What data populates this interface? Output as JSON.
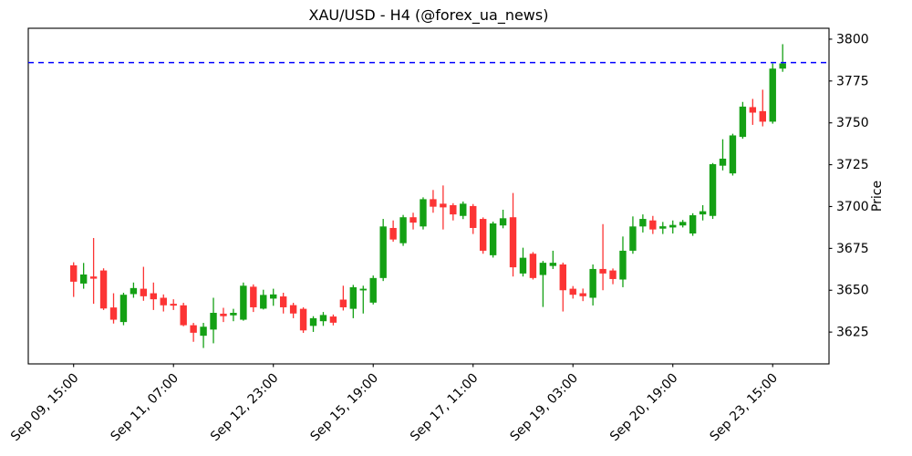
{
  "title": "XAU/USD - H4 (@forex_ua_news)",
  "chart_data": {
    "type": "candlestick",
    "title": "XAU/USD - H4 (@forex_ua_news)",
    "ylabel": "Price",
    "ylim": [
      3606,
      3806.5
    ],
    "xlim": [
      -4.54,
      75.64
    ],
    "grid": false,
    "y_ticks": [
      3625,
      3650,
      3675,
      3700,
      3725,
      3750,
      3775,
      3800
    ],
    "x_tick_positions": [
      0,
      10,
      20,
      30,
      40,
      50,
      60,
      70
    ],
    "x_tick_labels": [
      "Sep 09, 15:00",
      "Sep 11, 07:00",
      "Sep 12, 23:00",
      "Sep 15, 19:00",
      "Sep 17, 11:00",
      "Sep 19, 03:00",
      "Sep 20, 19:00",
      "Sep 23, 15:00"
    ],
    "hline": {
      "price": 3786,
      "color": "#0000ff",
      "dashed": true
    },
    "colors": {
      "up": "#14a014",
      "down": "#fc3434",
      "axis": "#000000"
    },
    "ohlc": [
      [
        3664.9,
        3666.7,
        3646.0,
        3655.1
      ],
      [
        3654.0,
        3666.3,
        3650.9,
        3659.4
      ],
      [
        3658.2,
        3681.2,
        3641.9,
        3656.9
      ],
      [
        3661.8,
        3663.1,
        3638.2,
        3639.1
      ],
      [
        3639.7,
        3648.2,
        3630.1,
        3632.4
      ],
      [
        3631.0,
        3648.5,
        3629.1,
        3647.3
      ],
      [
        3647.7,
        3654.6,
        3645.5,
        3651.3
      ],
      [
        3650.9,
        3664.0,
        3643.7,
        3646.4
      ],
      [
        3648.2,
        3654.6,
        3638.2,
        3644.6
      ],
      [
        3645.5,
        3647.5,
        3637.3,
        3641.0
      ],
      [
        3641.9,
        3644.6,
        3638.2,
        3640.8
      ],
      [
        3641.0,
        3642.5,
        3628.5,
        3629.1
      ],
      [
        3629.1,
        3630.5,
        3619.2,
        3624.6
      ],
      [
        3622.8,
        3630.5,
        3615.5,
        3628.2
      ],
      [
        3626.5,
        3645.5,
        3618.3,
        3636.5
      ],
      [
        3636.0,
        3639.5,
        3631.0,
        3634.5
      ],
      [
        3635.0,
        3638.9,
        3631.5,
        3636.5
      ],
      [
        3632.4,
        3654.6,
        3631.8,
        3652.7
      ],
      [
        3652.1,
        3653.5,
        3637.0,
        3639.8
      ],
      [
        3639.0,
        3650.3,
        3638.5,
        3647.2
      ],
      [
        3645.0,
        3650.9,
        3640.7,
        3647.5
      ],
      [
        3646.3,
        3648.5,
        3636.1,
        3639.8
      ],
      [
        3641.1,
        3642.5,
        3633.3,
        3636.1
      ],
      [
        3638.9,
        3639.8,
        3624.5,
        3626.0
      ],
      [
        3628.7,
        3634.5,
        3625.1,
        3633.3
      ],
      [
        3631.5,
        3637.0,
        3628.7,
        3635.2
      ],
      [
        3634.3,
        3635.5,
        3629.0,
        3630.6
      ],
      [
        3644.4,
        3652.7,
        3637.9,
        3639.8
      ],
      [
        3638.9,
        3653.2,
        3633.3,
        3651.8
      ],
      [
        3649.9,
        3652.7,
        3636.1,
        3650.9
      ],
      [
        3642.6,
        3658.8,
        3641.5,
        3657.3
      ],
      [
        3657.3,
        3692.6,
        3655.5,
        3688.1
      ],
      [
        3687.2,
        3691.7,
        3679.0,
        3680.3
      ],
      [
        3678.1,
        3695.0,
        3676.5,
        3693.6
      ],
      [
        3693.6,
        3696.3,
        3686.3,
        3690.4
      ],
      [
        3688.1,
        3705.5,
        3686.3,
        3704.4
      ],
      [
        3704.4,
        3709.9,
        3696.3,
        3699.9
      ],
      [
        3701.7,
        3712.6,
        3686.3,
        3699.5
      ],
      [
        3700.8,
        3702.0,
        3691.7,
        3695.3
      ],
      [
        3694.4,
        3703.0,
        3692.5,
        3701.7
      ],
      [
        3700.3,
        3701.5,
        3683.6,
        3687.2
      ],
      [
        3692.6,
        3693.5,
        3671.8,
        3673.6
      ],
      [
        3670.9,
        3691.0,
        3669.5,
        3689.9
      ],
      [
        3688.7,
        3698.1,
        3687.0,
        3693.0
      ],
      [
        3693.6,
        3708.1,
        3658.2,
        3663.7
      ],
      [
        3660.0,
        3675.4,
        3658.2,
        3669.4
      ],
      [
        3671.8,
        3672.8,
        3656.4,
        3657.3
      ],
      [
        3659.1,
        3667.5,
        3640.0,
        3666.4
      ],
      [
        3664.5,
        3673.6,
        3662.7,
        3666.4
      ],
      [
        3665.4,
        3666.5,
        3637.3,
        3650.0
      ],
      [
        3650.9,
        3652.5,
        3645.0,
        3647.3
      ],
      [
        3648.2,
        3651.0,
        3643.5,
        3646.4
      ],
      [
        3645.5,
        3665.4,
        3640.9,
        3662.7
      ],
      [
        3662.7,
        3689.5,
        3650.0,
        3660.0
      ],
      [
        3661.8,
        3663.0,
        3653.6,
        3656.7
      ],
      [
        3656.4,
        3682.1,
        3651.8,
        3673.6
      ],
      [
        3673.6,
        3694.1,
        3671.8,
        3688.1
      ],
      [
        3688.1,
        3695.3,
        3684.5,
        3692.6
      ],
      [
        3691.7,
        3694.4,
        3683.6,
        3686.3
      ],
      [
        3686.8,
        3690.8,
        3683.6,
        3688.2
      ],
      [
        3687.5,
        3691.7,
        3683.9,
        3689.0
      ],
      [
        3688.7,
        3692.0,
        3687.5,
        3690.8
      ],
      [
        3683.9,
        3696.0,
        3682.5,
        3694.8
      ],
      [
        3695.3,
        3700.8,
        3691.7,
        3697.2
      ],
      [
        3694.4,
        3726.0,
        3692.6,
        3725.3
      ],
      [
        3724.4,
        3740.2,
        3721.6,
        3728.6
      ],
      [
        3719.8,
        3743.5,
        3718.5,
        3742.5
      ],
      [
        3741.6,
        3762.5,
        3740.5,
        3759.7
      ],
      [
        3759.4,
        3764.3,
        3748.8,
        3756.1
      ],
      [
        3757.0,
        3769.8,
        3747.9,
        3750.7
      ],
      [
        3750.7,
        3785.5,
        3749.5,
        3782.4
      ],
      [
        3782.4,
        3797.0,
        3780.5,
        3785.5
      ]
    ]
  }
}
